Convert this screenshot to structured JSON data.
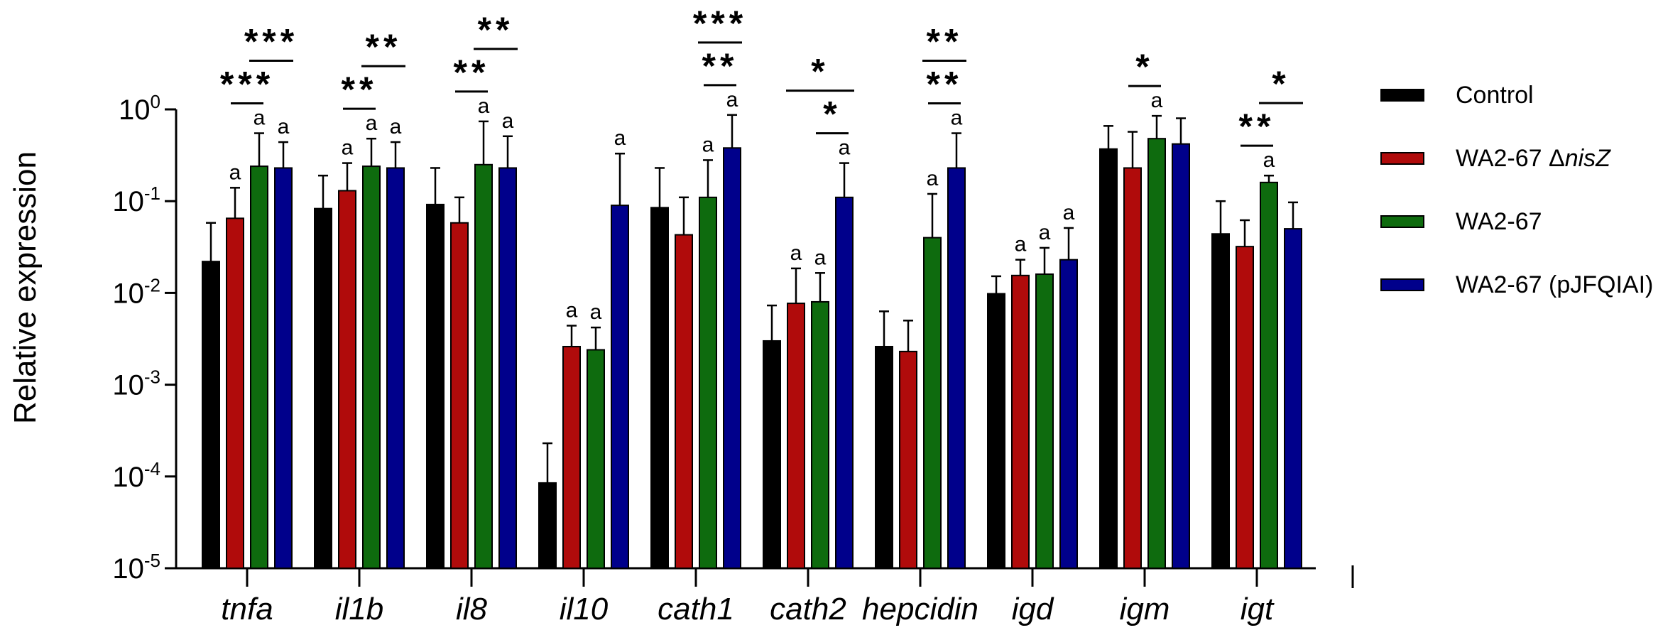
{
  "chart_data": {
    "type": "bar",
    "ylabel": "Relative expression",
    "yscale": "log",
    "ylim": [
      1e-05,
      1
    ],
    "yticks": [
      {
        "value": 1,
        "base": "10",
        "exp": "0"
      },
      {
        "value": 0.1,
        "base": "10",
        "exp": "-1"
      },
      {
        "value": 0.01,
        "base": "10",
        "exp": "-2"
      },
      {
        "value": 0.001,
        "base": "10",
        "exp": "-3"
      },
      {
        "value": 0.0001,
        "base": "10",
        "exp": "-4"
      },
      {
        "value": 1e-05,
        "base": "10",
        "exp": "-5"
      }
    ],
    "categories": [
      "tnfa",
      "il1b",
      "il8",
      "il10",
      "cath1",
      "cath2",
      "hepcidin",
      "igd",
      "igm",
      "igt"
    ],
    "series": [
      {
        "name": "Control",
        "name_parts": [
          "Control",
          ""
        ],
        "color": "#000000",
        "values": [
          0.022,
          0.083,
          0.092,
          8.5e-05,
          0.085,
          0.003,
          0.0026,
          0.0098,
          0.37,
          0.044
        ],
        "errors": [
          0.058,
          0.19,
          0.23,
          0.00023,
          0.23,
          0.0073,
          0.0063,
          0.0152,
          0.66,
          0.1
        ]
      },
      {
        "name": "WA2-67 ΔnisZ",
        "name_parts": [
          "WA2-67 Δ",
          "nisZ"
        ],
        "color": "#b00b0b",
        "values": [
          0.065,
          0.13,
          0.058,
          0.0026,
          0.043,
          0.0077,
          0.0023,
          0.0155,
          0.23,
          0.032
        ],
        "errors": [
          0.14,
          0.26,
          0.11,
          0.0044,
          0.11,
          0.0185,
          0.005,
          0.023,
          0.57,
          0.062
        ]
      },
      {
        "name": "WA2-67",
        "name_parts": [
          "WA2-67",
          ""
        ],
        "color": "#0e6b0e",
        "values": [
          0.24,
          0.24,
          0.25,
          0.0024,
          0.11,
          0.008,
          0.04,
          0.016,
          0.48,
          0.16
        ],
        "errors": [
          0.55,
          0.48,
          0.74,
          0.0042,
          0.28,
          0.0165,
          0.12,
          0.031,
          0.85,
          0.19
        ]
      },
      {
        "name": "WA2-67 (pJFQIAI)",
        "name_parts": [
          "WA2-67 (pJFQIAI)",
          ""
        ],
        "color": "#00008b",
        "values": [
          0.23,
          0.23,
          0.23,
          0.09,
          0.38,
          0.11,
          0.23,
          0.023,
          0.42,
          0.05
        ],
        "errors": [
          0.44,
          0.44,
          0.51,
          0.33,
          0.87,
          0.26,
          0.55,
          0.051,
          0.8,
          0.097
        ]
      }
    ],
    "letter_annotations": [
      {
        "category": 0,
        "series": 1,
        "text": "a"
      },
      {
        "category": 0,
        "series": 2,
        "text": "a"
      },
      {
        "category": 0,
        "series": 3,
        "text": "a"
      },
      {
        "category": 1,
        "series": 1,
        "text": "a"
      },
      {
        "category": 1,
        "series": 2,
        "text": "a"
      },
      {
        "category": 1,
        "series": 3,
        "text": "a"
      },
      {
        "category": 2,
        "series": 2,
        "text": "a"
      },
      {
        "category": 2,
        "series": 3,
        "text": "a"
      },
      {
        "category": 3,
        "series": 1,
        "text": "a"
      },
      {
        "category": 3,
        "series": 2,
        "text": "a"
      },
      {
        "category": 3,
        "series": 3,
        "text": "a"
      },
      {
        "category": 4,
        "series": 2,
        "text": "a"
      },
      {
        "category": 4,
        "series": 3,
        "text": "a"
      },
      {
        "category": 5,
        "series": 1,
        "text": "a"
      },
      {
        "category": 5,
        "series": 2,
        "text": "a"
      },
      {
        "category": 5,
        "series": 3,
        "text": "a"
      },
      {
        "category": 6,
        "series": 2,
        "text": "a"
      },
      {
        "category": 6,
        "series": 3,
        "text": "a"
      },
      {
        "category": 7,
        "series": 1,
        "text": "a"
      },
      {
        "category": 7,
        "series": 2,
        "text": "a"
      },
      {
        "category": 7,
        "series": 3,
        "text": "a"
      },
      {
        "category": 8,
        "series": 2,
        "text": "a"
      },
      {
        "category": 9,
        "series": 2,
        "text": "a"
      }
    ],
    "significance": [
      {
        "category": 0,
        "from": 1,
        "to": 2,
        "stars": "***",
        "level": 1
      },
      {
        "category": 0,
        "from": 2,
        "to": 3,
        "stars": "***",
        "level": 2
      },
      {
        "category": 1,
        "from": 1,
        "to": 2,
        "stars": "**",
        "level": 1
      },
      {
        "category": 1,
        "from": 2,
        "to": 3,
        "stars": "**",
        "level": 2
      },
      {
        "category": 2,
        "from": 1,
        "to": 2,
        "stars": "**",
        "level": 1
      },
      {
        "category": 2,
        "from": 2,
        "to": 3,
        "stars": "**",
        "level": 2
      },
      {
        "category": 4,
        "from": 2,
        "to": 3,
        "stars": "**",
        "level": 1
      },
      {
        "category": 4,
        "from": 2,
        "to": 3,
        "stars": "***",
        "level": 2
      },
      {
        "category": 5,
        "from": 2,
        "to": 3,
        "stars": "*",
        "level": 1
      },
      {
        "category": 5,
        "from": 1,
        "to": 3,
        "stars": "*",
        "level": 2
      },
      {
        "category": 6,
        "from": 2,
        "to": 3,
        "stars": "**",
        "level": 1
      },
      {
        "category": 6,
        "from": 2,
        "to": 3,
        "stars": "**",
        "level": 2
      },
      {
        "category": 8,
        "from": 1,
        "to": 2,
        "stars": "*",
        "level": 1
      },
      {
        "category": 9,
        "from": 1,
        "to": 2,
        "stars": "**",
        "level": 1
      },
      {
        "category": 9,
        "from": 2,
        "to": 3,
        "stars": "*",
        "level": 2
      }
    ],
    "legend_position": "right",
    "grid": false
  }
}
